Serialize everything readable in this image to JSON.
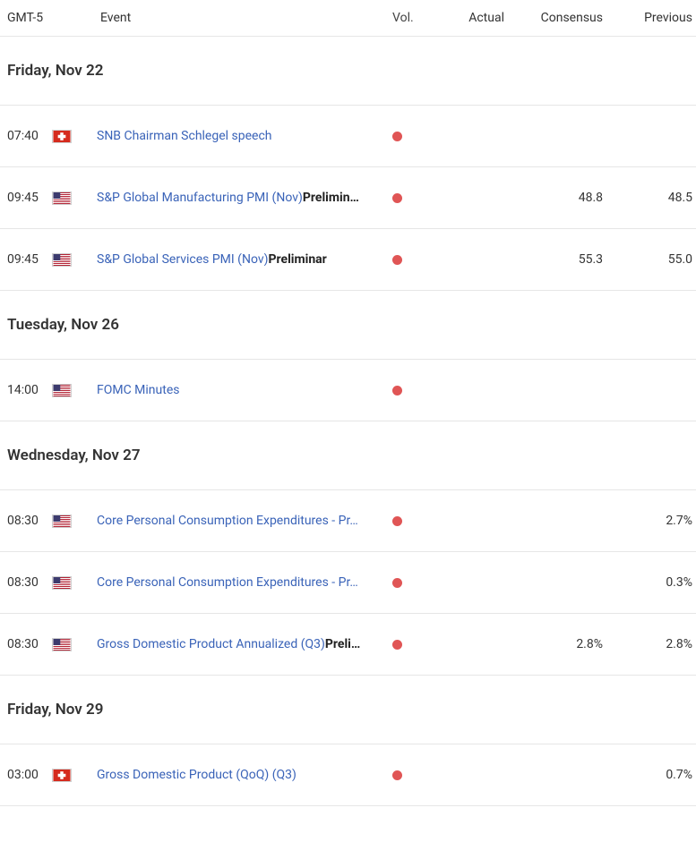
{
  "colors": {
    "vol_dot": "#e05555",
    "event_link": "#3a63b8",
    "text": "#333333",
    "border": "#e6e6e6"
  },
  "header": {
    "time": "GMT-5",
    "event": "Event",
    "vol": "Vol.",
    "actual": "Actual",
    "consensus": "Consensus",
    "previous": "Previous"
  },
  "flags": {
    "ch": "ch",
    "us": "us"
  },
  "days": [
    {
      "label": "Friday, Nov 22",
      "events": [
        {
          "time": "07:40",
          "flag": "ch",
          "event": "SNB Chairman Schlegel speech",
          "suffix": "",
          "actual": "",
          "consensus": "",
          "previous": ""
        },
        {
          "time": "09:45",
          "flag": "us",
          "event": "S&P Global Manufacturing PMI (Nov)",
          "suffix": "Prelimin…",
          "actual": "",
          "consensus": "48.8",
          "previous": "48.5"
        },
        {
          "time": "09:45",
          "flag": "us",
          "event": "S&P Global Services PMI (Nov)",
          "suffix": "Preliminar",
          "actual": "",
          "consensus": "55.3",
          "previous": "55.0"
        }
      ]
    },
    {
      "label": "Tuesday, Nov 26",
      "events": [
        {
          "time": "14:00",
          "flag": "us",
          "event": "FOMC Minutes",
          "suffix": "",
          "actual": "",
          "consensus": "",
          "previous": ""
        }
      ]
    },
    {
      "label": "Wednesday, Nov 27",
      "events": [
        {
          "time": "08:30",
          "flag": "us",
          "event": "Core Personal Consumption Expenditures - Pr…",
          "suffix": "",
          "actual": "",
          "consensus": "",
          "previous": "2.7%"
        },
        {
          "time": "08:30",
          "flag": "us",
          "event": "Core Personal Consumption Expenditures - Pr…",
          "suffix": "",
          "actual": "",
          "consensus": "",
          "previous": "0.3%"
        },
        {
          "time": "08:30",
          "flag": "us",
          "event": "Gross Domestic Product Annualized (Q3)",
          "suffix": "Preli…",
          "actual": "",
          "consensus": "2.8%",
          "previous": "2.8%"
        }
      ]
    },
    {
      "label": "Friday, Nov 29",
      "events": [
        {
          "time": "03:00",
          "flag": "ch",
          "event": "Gross Domestic Product (QoQ) (Q3)",
          "suffix": "",
          "actual": "",
          "consensus": "",
          "previous": "0.7%"
        }
      ]
    }
  ]
}
